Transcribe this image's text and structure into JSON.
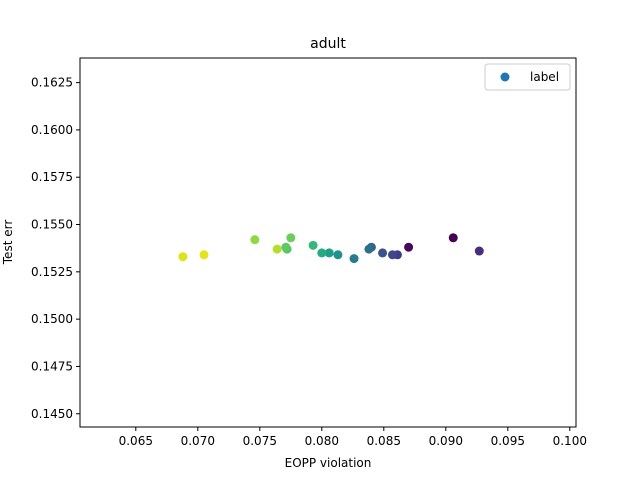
{
  "chart_data": {
    "type": "scatter",
    "title": "adult",
    "xlabel": "EOPP violation",
    "ylabel": "Test err",
    "xlim": [
      0.0605,
      0.1005
    ],
    "ylim": [
      0.1443,
      0.1638
    ],
    "xticks": [
      0.065,
      0.07,
      0.075,
      0.08,
      0.085,
      0.09,
      0.095,
      0.1
    ],
    "xtick_labels": [
      "0.065",
      "0.070",
      "0.075",
      "0.080",
      "0.085",
      "0.090",
      "0.095",
      "0.100"
    ],
    "yticks": [
      0.145,
      0.1475,
      0.15,
      0.1525,
      0.155,
      0.1575,
      0.16,
      0.1625
    ],
    "ytick_labels": [
      "0.1450",
      "0.1475",
      "0.1500",
      "0.1525",
      "0.1550",
      "0.1575",
      "0.1600",
      "0.1625"
    ],
    "grid": false,
    "legend": {
      "position": "top-right",
      "entries": [
        {
          "label": "label",
          "color": "#1f77b4"
        }
      ]
    },
    "colormap": "viridis",
    "points": [
      {
        "x": 0.0906,
        "y": 0.1543,
        "color": "#440154"
      },
      {
        "x": 0.087,
        "y": 0.1538,
        "color": "#46085c"
      },
      {
        "x": 0.0927,
        "y": 0.1536,
        "color": "#472d7b"
      },
      {
        "x": 0.0861,
        "y": 0.1534,
        "color": "#443983"
      },
      {
        "x": 0.0857,
        "y": 0.1534,
        "color": "#404688"
      },
      {
        "x": 0.0849,
        "y": 0.1535,
        "color": "#3b528b"
      },
      {
        "x": 0.084,
        "y": 0.1538,
        "color": "#33638d"
      },
      {
        "x": 0.0838,
        "y": 0.1537,
        "color": "#2d708e"
      },
      {
        "x": 0.0826,
        "y": 0.1532,
        "color": "#287c8e"
      },
      {
        "x": 0.0813,
        "y": 0.1534,
        "color": "#21918c"
      },
      {
        "x": 0.0806,
        "y": 0.1535,
        "color": "#1f9e89"
      },
      {
        "x": 0.08,
        "y": 0.1535,
        "color": "#25ab82"
      },
      {
        "x": 0.0793,
        "y": 0.1539,
        "color": "#35b779"
      },
      {
        "x": 0.0772,
        "y": 0.1537,
        "color": "#4ec36b"
      },
      {
        "x": 0.0771,
        "y": 0.1538,
        "color": "#5ec962"
      },
      {
        "x": 0.0775,
        "y": 0.1543,
        "color": "#6ccd5a"
      },
      {
        "x": 0.0746,
        "y": 0.1542,
        "color": "#8fd744"
      },
      {
        "x": 0.0764,
        "y": 0.1537,
        "color": "#b5de2b"
      },
      {
        "x": 0.0705,
        "y": 0.1534,
        "color": "#e5e419"
      },
      {
        "x": 0.0688,
        "y": 0.1533,
        "color": "#dde318"
      }
    ]
  }
}
